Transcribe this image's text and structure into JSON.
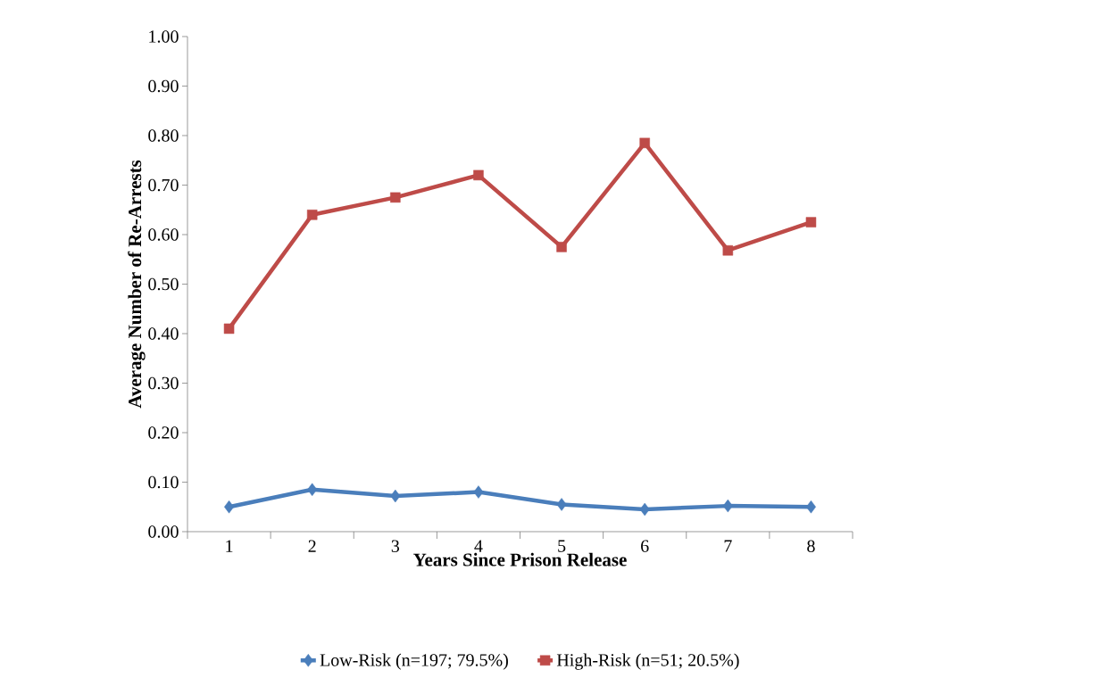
{
  "chart_data": {
    "type": "line",
    "xlabel": "Years Since Prison Release",
    "ylabel": "Average Number of Re-Arrests",
    "categories": [
      "1",
      "2",
      "3",
      "4",
      "5",
      "6",
      "7",
      "8"
    ],
    "ylim": [
      0,
      1
    ],
    "yticks": [
      {
        "value": 0,
        "label": "0.00"
      },
      {
        "value": 0.1,
        "label": "0.10"
      },
      {
        "value": 0.2,
        "label": "0.20"
      },
      {
        "value": 0.3,
        "label": "0.30"
      },
      {
        "value": 0.4,
        "label": "0.40"
      },
      {
        "value": 0.5,
        "label": "0.50"
      },
      {
        "value": 0.6,
        "label": "0.60"
      },
      {
        "value": 0.7,
        "label": "0.70"
      },
      {
        "value": 0.8,
        "label": "0.80"
      },
      {
        "value": 0.9,
        "label": "0.90"
      },
      {
        "value": 1,
        "label": "1.00"
      }
    ],
    "series": [
      {
        "name": "Low-Risk (n=197; 79.5%)",
        "color": "#4a7ebb",
        "marker": "diamond",
        "values": [
          0.05,
          0.085,
          0.072,
          0.08,
          0.055,
          0.045,
          0.052,
          0.05
        ]
      },
      {
        "name": "High-Risk (n=51; 20.5%)",
        "color": "#be4b48",
        "marker": "square",
        "values": [
          0.41,
          0.64,
          0.675,
          0.72,
          0.575,
          0.785,
          0.568,
          0.625
        ]
      }
    ],
    "legend": "bottom",
    "grid": false,
    "line_style": "solid"
  }
}
